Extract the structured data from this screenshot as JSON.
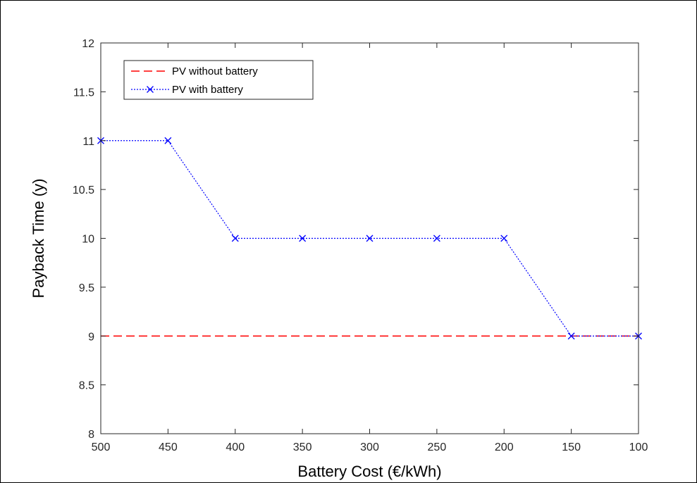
{
  "chart_data": {
    "type": "line",
    "title": "",
    "xlabel": "Battery Cost (€/kWh)",
    "ylabel": "Payback Time (y)",
    "x": [
      500,
      450,
      400,
      350,
      300,
      250,
      200,
      150,
      100
    ],
    "x_reversed": true,
    "xlim": [
      500,
      100
    ],
    "ylim": [
      8,
      12
    ],
    "x_ticks": [
      "500",
      "450",
      "400",
      "350",
      "300",
      "250",
      "200",
      "150",
      "100"
    ],
    "y_ticks": [
      "8",
      "8.5",
      "9",
      "9.5",
      "10",
      "10.5",
      "11",
      "11.5",
      "12"
    ],
    "grid": false,
    "legend_position": "top-left",
    "series": [
      {
        "name": "PV without battery",
        "values": [
          9,
          9,
          9,
          9,
          9,
          9,
          9,
          9,
          9
        ],
        "color": "#ff0000",
        "line_style": "dashed",
        "marker": "none"
      },
      {
        "name": "PV with battery",
        "values": [
          11,
          11,
          10,
          10,
          10,
          10,
          10,
          9,
          9
        ],
        "color": "#0000ff",
        "line_style": "dotted",
        "marker": "x"
      }
    ]
  }
}
